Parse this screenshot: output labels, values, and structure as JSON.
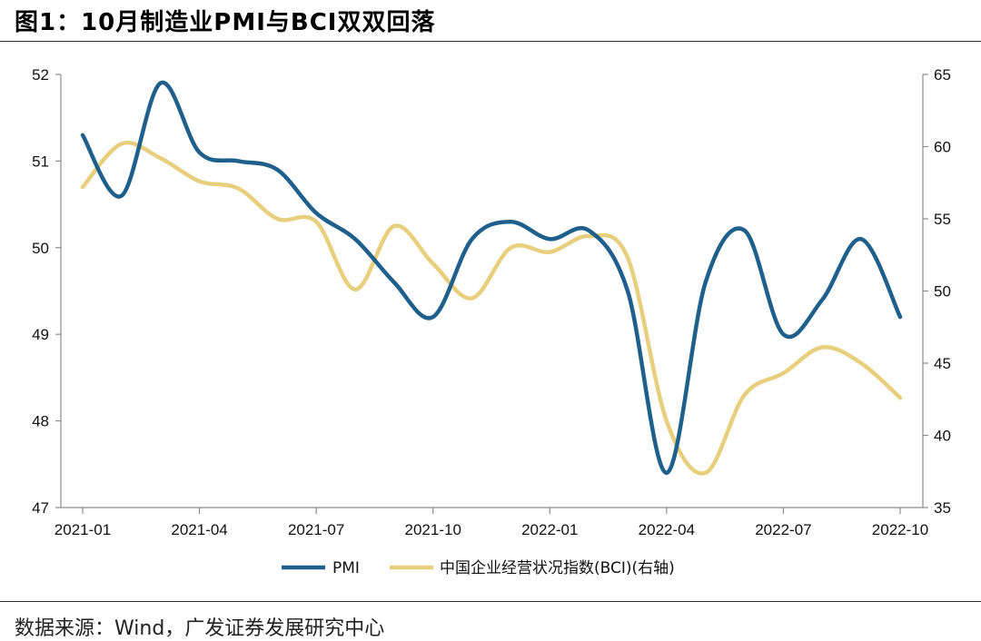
{
  "header": {
    "title": "图1：10月制造业PMI与BCI双双回落"
  },
  "footer": {
    "source": "数据来源：Wind，广发证券发展研究中心"
  },
  "chart_data": {
    "type": "line",
    "title": "图1：10月制造业PMI与BCI双双回落",
    "x": [
      "2021-01",
      "2021-02",
      "2021-03",
      "2021-04",
      "2021-05",
      "2021-06",
      "2021-07",
      "2021-08",
      "2021-09",
      "2021-10",
      "2021-11",
      "2021-12",
      "2022-01",
      "2022-02",
      "2022-03",
      "2022-04",
      "2022-05",
      "2022-06",
      "2022-07",
      "2022-08",
      "2022-09",
      "2022-10"
    ],
    "x_tick_labels": [
      "2021-01",
      "2021-04",
      "2021-07",
      "2021-10",
      "2022-01",
      "2022-04",
      "2022-07",
      "2022-10"
    ],
    "y_left": {
      "ylim": [
        47,
        52
      ],
      "ticks": [
        47,
        48,
        49,
        50,
        51,
        52
      ]
    },
    "y_right": {
      "ylim": [
        35,
        65
      ],
      "ticks": [
        35,
        40,
        45,
        50,
        55,
        60,
        65
      ]
    },
    "series": [
      {
        "name": "PMI",
        "axis": "left",
        "color": "#1f5f8b",
        "values": [
          51.3,
          50.6,
          51.9,
          51.1,
          51.0,
          50.9,
          50.4,
          50.1,
          49.6,
          49.2,
          50.1,
          50.3,
          50.1,
          50.2,
          49.5,
          47.4,
          49.6,
          50.2,
          49.0,
          49.4,
          50.1,
          49.2
        ]
      },
      {
        "name": "中国企业经营状况指数(BCI)(右轴)",
        "axis": "right",
        "color": "#e8cf7e",
        "values": [
          57.2,
          60.2,
          59.2,
          57.6,
          57.1,
          55.0,
          54.8,
          50.1,
          54.5,
          51.9,
          49.5,
          53.0,
          52.7,
          53.8,
          52.3,
          41.0,
          37.4,
          42.8,
          44.3,
          46.1,
          45.0,
          42.6
        ]
      }
    ],
    "grid": false,
    "legend": "bottom"
  }
}
